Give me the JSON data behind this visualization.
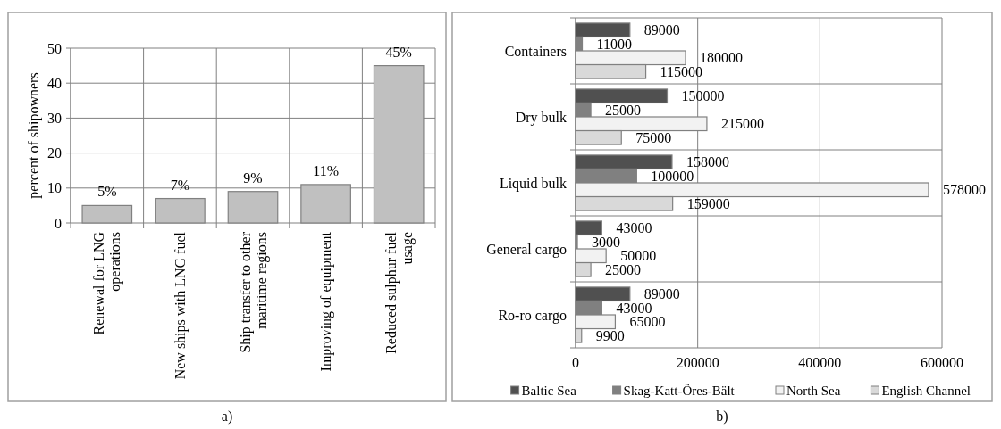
{
  "chart_data": [
    {
      "type": "bar",
      "ylabel": "percent of shipowners",
      "categories": [
        "Renewal for LNG operations",
        "New ships with LNG fuel",
        "Ship transfer to other maritime regions",
        "Improving of equipment",
        "Reduced sulphur fuel usage"
      ],
      "values": [
        5,
        7,
        9,
        11,
        45
      ],
      "value_labels": [
        "5%",
        "7%",
        "9%",
        "11%",
        "45%"
      ],
      "color": "#c0c0c0",
      "ylim": [
        0,
        50
      ],
      "yticks": [
        0,
        10,
        20,
        30,
        40,
        50
      ],
      "grid": true,
      "annotations": [
        "a)"
      ]
    },
    {
      "type": "bar",
      "orientation": "horizontal",
      "categories": [
        "Containers",
        "Dry bulk",
        "Liquid bulk",
        "General cargo",
        "Ro-ro cargo"
      ],
      "series": [
        {
          "name": "Baltic Sea",
          "color": "#505050",
          "values": [
            89000,
            150000,
            158000,
            43000,
            89000
          ]
        },
        {
          "name": "Skag-Katt-Öres-Bält",
          "color": "#808080",
          "values": [
            11000,
            25000,
            100000,
            3000,
            43000
          ]
        },
        {
          "name": "North Sea",
          "color": "#f2f2f2",
          "values": [
            180000,
            215000,
            578000,
            50000,
            65000
          ]
        },
        {
          "name": "English Channel",
          "color": "#d9d9d9",
          "values": [
            115000,
            75000,
            159000,
            25000,
            9900
          ]
        }
      ],
      "xlim": [
        0,
        600000
      ],
      "xticks": [
        0,
        200000,
        400000,
        600000
      ],
      "grid": true,
      "legend": "bottom",
      "data_labels": true,
      "annotations": [
        "b)"
      ]
    }
  ]
}
